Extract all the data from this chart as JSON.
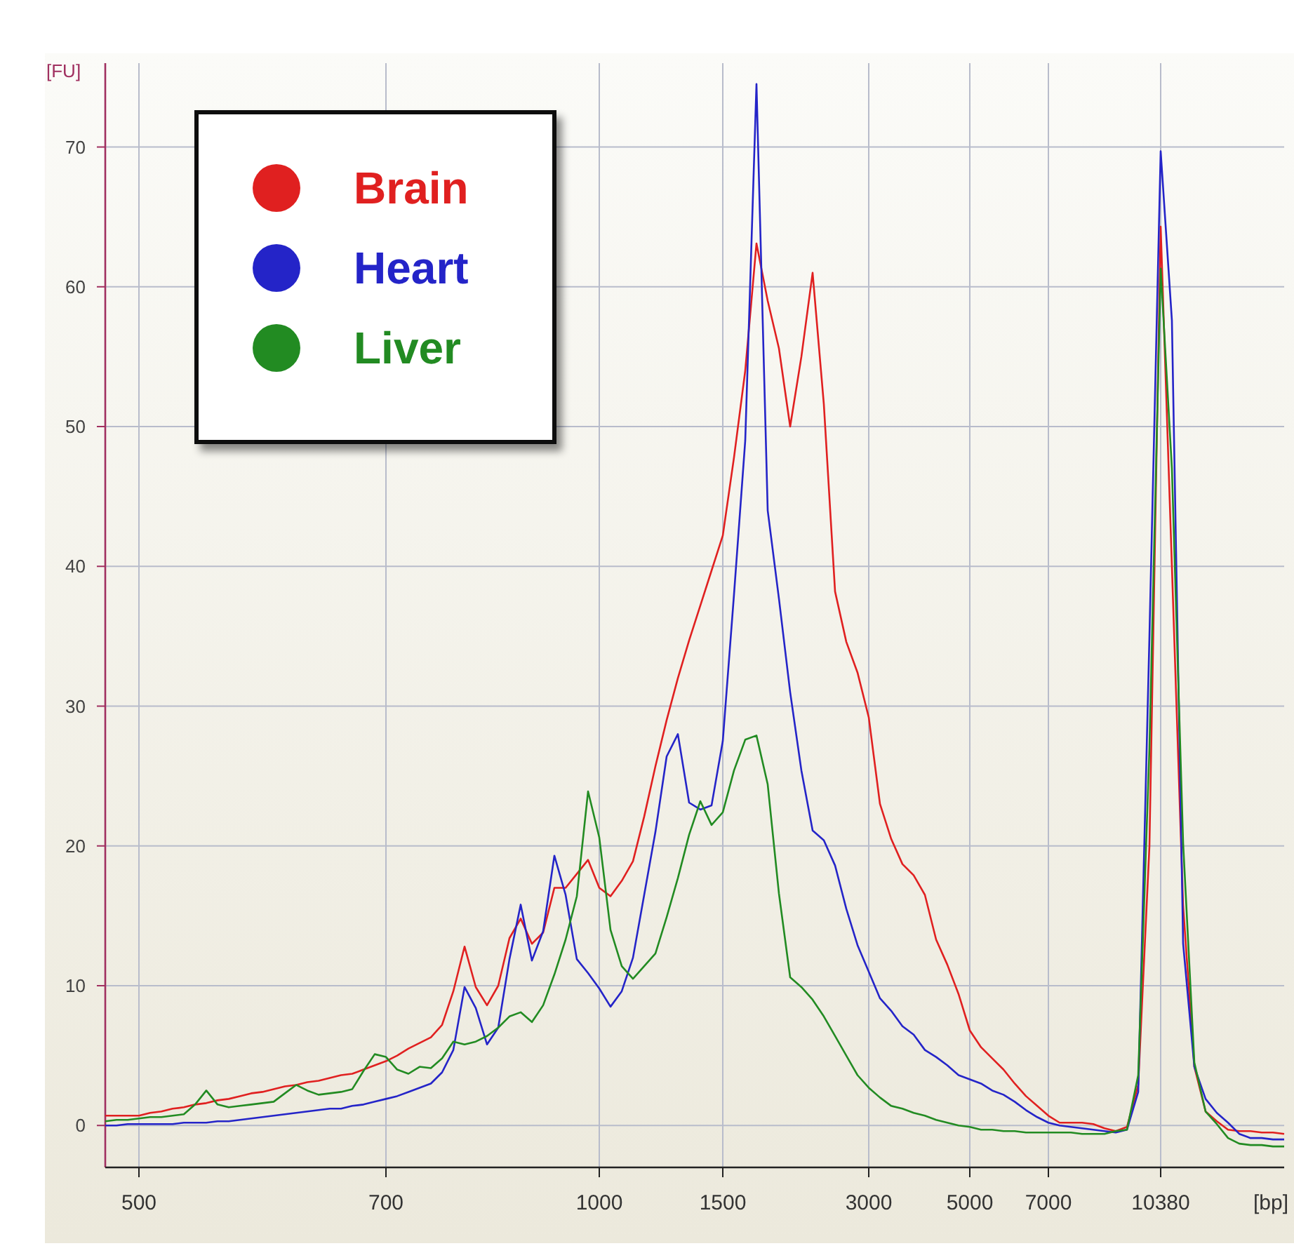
{
  "chart_data": {
    "type": "line",
    "xlabel": "[bp]",
    "ylabel": "[FU]",
    "categories": [
      null,
      null,
      null,
      "500",
      null,
      null,
      null,
      null,
      null,
      null,
      null,
      null,
      null,
      null,
      null,
      null,
      null,
      null,
      null,
      null,
      null,
      null,
      null,
      null,
      null,
      "700",
      null,
      null,
      null,
      null,
      null,
      null,
      null,
      null,
      null,
      null,
      null,
      null,
      null,
      null,
      null,
      null,
      null,
      null,
      "1000",
      null,
      null,
      null,
      null,
      null,
      null,
      null,
      null,
      null,
      null,
      "1500",
      null,
      null,
      null,
      null,
      null,
      null,
      null,
      null,
      null,
      null,
      null,
      null,
      "3000",
      null,
      null,
      null,
      null,
      null,
      null,
      null,
      null,
      "5000",
      null,
      null,
      null,
      null,
      null,
      null,
      "7000",
      null,
      null,
      null,
      null,
      null,
      null,
      null,
      null,
      null,
      "10380",
      null,
      null,
      null,
      null,
      null,
      null,
      null,
      null,
      null,
      null,
      null
    ],
    "ylim": [
      -3,
      76
    ],
    "yticks": [
      0,
      10,
      20,
      30,
      40,
      50,
      60,
      70
    ],
    "grid": true,
    "legend": "top left",
    "marker": "none",
    "line_style": "solid",
    "series": [
      {
        "name": "Brain",
        "color": "#e02020",
        "values": [
          0.7,
          0.7,
          0.7,
          0.7,
          0.9,
          1.0,
          1.2,
          1.3,
          1.5,
          1.6,
          1.8,
          1.9,
          2.1,
          2.3,
          2.4,
          2.6,
          2.8,
          2.9,
          3.1,
          3.2,
          3.4,
          3.6,
          3.7,
          4.0,
          4.3,
          4.6,
          5.0,
          5.5,
          5.9,
          6.3,
          7.2,
          9.6,
          12.8,
          9.9,
          8.6,
          10,
          13.4,
          14.8,
          13,
          13.8,
          17,
          17,
          18,
          19,
          17,
          16.4,
          17.5,
          18.9,
          22.1,
          25.7,
          29,
          32,
          34.7,
          37.2,
          39.7,
          42.2,
          47.8,
          54,
          63.1,
          59,
          55.6,
          50,
          55,
          61,
          51.6,
          38.2,
          34.6,
          32.4,
          29.2,
          23,
          20.5,
          18.7,
          17.9,
          16.5,
          13.3,
          11.5,
          9.4,
          6.8,
          5.6,
          4.8,
          4.0,
          3.0,
          2.1,
          1.4,
          0.7,
          0.2,
          0.2,
          0.2,
          0.1,
          -0.2,
          -0.4,
          -0.1,
          2.9,
          20,
          64.3,
          40,
          15.7,
          4.2,
          1.0,
          0.3,
          -0.3,
          -0.4,
          -0.4,
          -0.5,
          -0.5,
          -0.6
        ]
      },
      {
        "name": "Heart",
        "color": "#2424c8",
        "values": [
          0,
          0,
          0.1,
          0.1,
          0.1,
          0.1,
          0.1,
          0.2,
          0.2,
          0.2,
          0.3,
          0.3,
          0.4,
          0.5,
          0.6,
          0.7,
          0.8,
          0.9,
          1.0,
          1.1,
          1.2,
          1.2,
          1.4,
          1.5,
          1.7,
          1.9,
          2.1,
          2.4,
          2.7,
          3.0,
          3.8,
          5.4,
          9.9,
          8.4,
          5.8,
          7,
          11.9,
          15.8,
          11.8,
          13.9,
          19.3,
          16.5,
          11.9,
          10.9,
          9.8,
          8.5,
          9.6,
          12.0,
          16.5,
          21.0,
          26.4,
          28,
          23.1,
          22.6,
          22.9,
          27.5,
          38,
          49,
          74.5,
          44,
          37.7,
          31,
          25.4,
          21.1,
          20.4,
          18.6,
          15.5,
          12.9,
          11.0,
          9.1,
          8.2,
          7.1,
          6.5,
          5.4,
          4.9,
          4.3,
          3.6,
          3.3,
          3.0,
          2.5,
          2.2,
          1.7,
          1.1,
          0.6,
          0.2,
          0,
          -0.1,
          -0.2,
          -0.3,
          -0.4,
          -0.5,
          -0.3,
          2.4,
          35,
          69.7,
          57.6,
          13,
          4.2,
          1.9,
          0.9,
          0.2,
          -0.6,
          -0.9,
          -0.9,
          -1.0,
          -1.0
        ]
      },
      {
        "name": "Liver",
        "color": "#228b22",
        "values": [
          0.3,
          0.4,
          0.4,
          0.5,
          0.6,
          0.6,
          0.7,
          0.8,
          1.5,
          2.5,
          1.5,
          1.3,
          1.4,
          1.5,
          1.6,
          1.7,
          2.3,
          2.9,
          2.5,
          2.2,
          2.3,
          2.4,
          2.6,
          3.9,
          5.1,
          4.9,
          4.0,
          3.7,
          4.2,
          4.1,
          4.8,
          6.0,
          5.8,
          6.0,
          6.4,
          7.0,
          7.8,
          8.1,
          7.4,
          8.6,
          10.8,
          13.3,
          16.4,
          23.9,
          20.6,
          14,
          11.4,
          10.5,
          11.4,
          12.3,
          14.9,
          17.7,
          20.8,
          23.2,
          21.5,
          22.4,
          25.4,
          27.6,
          27.9,
          24.4,
          16.6,
          10.6,
          9.9,
          9.0,
          7.8,
          6.4,
          5.0,
          3.6,
          2.7,
          2.0,
          1.4,
          1.2,
          0.9,
          0.7,
          0.4,
          0.2,
          0,
          -0.1,
          -0.3,
          -0.3,
          -0.4,
          -0.4,
          -0.5,
          -0.5,
          -0.5,
          -0.5,
          -0.5,
          -0.6,
          -0.6,
          -0.6,
          -0.4,
          -0.3,
          3.6,
          27,
          61.3,
          47,
          20.2,
          4.5,
          1.0,
          0.1,
          -0.9,
          -1.3,
          -1.4,
          -1.4,
          -1.5,
          -1.5
        ]
      }
    ]
  }
}
